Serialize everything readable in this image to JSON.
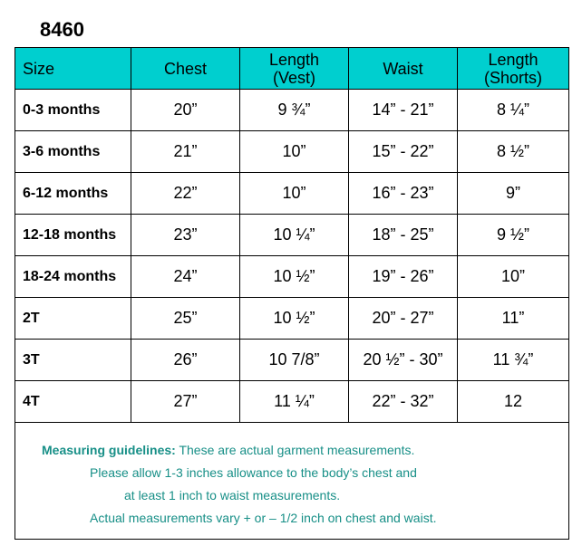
{
  "title": "8460",
  "table": {
    "headers": [
      "Size",
      "Chest",
      "Length\n(Vest)",
      "Waist",
      "Length\n(Shorts)"
    ],
    "header_lines": [
      [
        "Size"
      ],
      [
        "Chest"
      ],
      [
        "Length",
        "(Vest)"
      ],
      [
        "Waist"
      ],
      [
        "Length",
        "(Shorts)"
      ]
    ],
    "rows": [
      [
        "0-3 months",
        "20”",
        "9 ¾”",
        "14” - 21”",
        "8 ¼”"
      ],
      [
        "3-6 months",
        "21”",
        "10”",
        "15” - 22”",
        "8 ½”"
      ],
      [
        "6-12 months",
        "22”",
        "10”",
        "16” - 23”",
        "9”"
      ],
      [
        "12-18 months",
        "23”",
        "10 ¼”",
        "18” - 25”",
        "9 ½”"
      ],
      [
        "18-24 months",
        "24”",
        "10 ½”",
        "19” - 26”",
        "10”"
      ],
      [
        "2T",
        "25”",
        "10 ½”",
        "20” - 27”",
        "11”"
      ],
      [
        "3T",
        "26”",
        "10 7/8”",
        "20 ½” - 30”",
        "11 ¾”"
      ],
      [
        "4T",
        "27”",
        "11 ¼”",
        "22” - 32”",
        "12"
      ]
    ]
  },
  "notes": {
    "label": "Measuring guidelines:",
    "line1": " These are actual garment measurements.",
    "line2": "Please allow 1-3 inches allowance to the body’s chest and",
    "line3": "at least 1 inch to waist measurements.",
    "line4": "Actual measurements vary + or – 1/2 inch on chest and waist."
  },
  "colors": {
    "header_bg": "#00CFCF",
    "notes_text": "#178F87"
  }
}
